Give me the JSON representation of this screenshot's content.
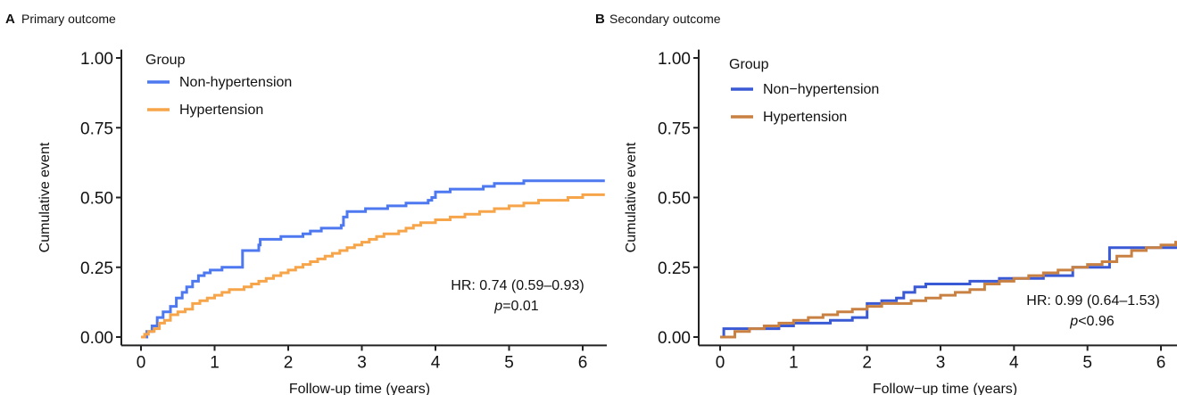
{
  "panels": [
    {
      "letter": "A",
      "title": "Primary outcome",
      "hr_text": "HR: 0.74 (0.59–0.93)",
      "p_symbol": "p",
      "p_rest": "=0.01"
    },
    {
      "letter": "B",
      "title": "Secondary outcome",
      "hr_text": "HR: 0.99 (0.64–1.53)",
      "p_symbol": "p",
      "p_rest": "<0.96"
    }
  ],
  "chart_data": [
    {
      "type": "line",
      "step": true,
      "title": "Primary outcome",
      "xlabel": "Follow-up time (years)",
      "ylabel": "Cumulative event",
      "xlim": [
        -0.15,
        6.3
      ],
      "ylim": [
        -0.03,
        1.03
      ],
      "xticks": [
        0,
        1,
        2,
        3,
        4,
        5,
        6
      ],
      "yticks": [
        0.0,
        0.25,
        0.5,
        0.75,
        1.0
      ],
      "ytick_labels": [
        "0.00",
        "0.25",
        "0.50",
        "0.75",
        "1.00"
      ],
      "legend_title": "Group",
      "legend_position": "top-left",
      "grid": false,
      "series": [
        {
          "name": "Non-hypertension",
          "color": "#4d78f0",
          "x": [
            0,
            0.08,
            0.15,
            0.22,
            0.3,
            0.4,
            0.48,
            0.56,
            0.62,
            0.7,
            0.78,
            0.86,
            0.94,
            1.02,
            1.1,
            1.2,
            1.35,
            1.38,
            1.5,
            1.6,
            1.62,
            1.75,
            1.9,
            2.05,
            2.2,
            2.3,
            2.45,
            2.6,
            2.72,
            2.75,
            2.8,
            2.9,
            3.05,
            3.2,
            3.35,
            3.45,
            3.6,
            3.75,
            3.9,
            3.95,
            4.0,
            4.1,
            4.2,
            4.35,
            4.5,
            4.65,
            4.8,
            5.0,
            5.2,
            5.5,
            6.3
          ],
          "y": [
            0.0,
            0.02,
            0.04,
            0.07,
            0.09,
            0.11,
            0.14,
            0.16,
            0.18,
            0.2,
            0.22,
            0.23,
            0.24,
            0.24,
            0.25,
            0.25,
            0.25,
            0.31,
            0.31,
            0.33,
            0.35,
            0.35,
            0.36,
            0.36,
            0.37,
            0.38,
            0.39,
            0.39,
            0.4,
            0.43,
            0.45,
            0.45,
            0.46,
            0.46,
            0.47,
            0.47,
            0.48,
            0.48,
            0.49,
            0.5,
            0.52,
            0.52,
            0.53,
            0.53,
            0.53,
            0.54,
            0.55,
            0.55,
            0.56,
            0.56,
            0.56
          ]
        },
        {
          "name": "Hypertension",
          "color": "#f7a54a",
          "x": [
            0,
            0.05,
            0.1,
            0.18,
            0.25,
            0.32,
            0.4,
            0.5,
            0.6,
            0.7,
            0.8,
            0.9,
            1.0,
            1.1,
            1.2,
            1.3,
            1.4,
            1.5,
            1.6,
            1.7,
            1.8,
            1.9,
            2.0,
            2.1,
            2.2,
            2.3,
            2.4,
            2.5,
            2.6,
            2.7,
            2.8,
            2.9,
            3.0,
            3.1,
            3.2,
            3.3,
            3.4,
            3.5,
            3.6,
            3.7,
            3.8,
            3.9,
            4.0,
            4.2,
            4.4,
            4.6,
            4.8,
            5.0,
            5.2,
            5.4,
            5.6,
            5.8,
            6.0,
            6.3
          ],
          "y": [
            0.0,
            0.01,
            0.02,
            0.03,
            0.05,
            0.06,
            0.08,
            0.09,
            0.1,
            0.12,
            0.13,
            0.14,
            0.15,
            0.16,
            0.17,
            0.17,
            0.18,
            0.19,
            0.2,
            0.21,
            0.22,
            0.23,
            0.24,
            0.25,
            0.26,
            0.27,
            0.28,
            0.29,
            0.3,
            0.31,
            0.32,
            0.33,
            0.34,
            0.35,
            0.36,
            0.37,
            0.37,
            0.38,
            0.39,
            0.4,
            0.41,
            0.41,
            0.42,
            0.43,
            0.44,
            0.45,
            0.46,
            0.47,
            0.48,
            0.49,
            0.49,
            0.5,
            0.51,
            0.51
          ]
        }
      ]
    },
    {
      "type": "line",
      "step": true,
      "title": "Secondary outcome",
      "xlabel": "Follow−up time (years)",
      "ylabel": "Cumulative event",
      "xlim": [
        -0.15,
        6.3
      ],
      "ylim": [
        -0.03,
        1.03
      ],
      "xticks": [
        0,
        1,
        2,
        3,
        4,
        5,
        6
      ],
      "yticks": [
        0.0,
        0.25,
        0.5,
        0.75,
        1.0
      ],
      "ytick_labels": [
        "0.00",
        "0.25",
        "0.50",
        "0.75",
        "1.00"
      ],
      "legend_title": "Group",
      "legend_position": "top-left",
      "grid": false,
      "series": [
        {
          "name": "Non−hypertension",
          "color": "#3a59d4",
          "x": [
            0,
            0.05,
            0.5,
            0.8,
            1.0,
            1.2,
            1.5,
            1.8,
            1.95,
            2.0,
            2.2,
            2.4,
            2.5,
            2.65,
            2.8,
            3.0,
            3.2,
            3.4,
            3.6,
            3.8,
            4.0,
            4.2,
            4.4,
            4.6,
            4.8,
            5.0,
            5.2,
            5.3,
            5.5,
            5.7,
            6.0,
            6.3
          ],
          "y": [
            0.0,
            0.03,
            0.03,
            0.04,
            0.05,
            0.05,
            0.06,
            0.07,
            0.07,
            0.12,
            0.13,
            0.14,
            0.16,
            0.18,
            0.19,
            0.19,
            0.19,
            0.2,
            0.2,
            0.21,
            0.21,
            0.21,
            0.22,
            0.22,
            0.25,
            0.25,
            0.25,
            0.32,
            0.32,
            0.32,
            0.32,
            0.32
          ]
        },
        {
          "name": "Hypertension",
          "color": "#c88142",
          "x": [
            0,
            0.2,
            0.4,
            0.6,
            0.8,
            1.0,
            1.2,
            1.4,
            1.6,
            1.8,
            2.0,
            2.2,
            2.4,
            2.6,
            2.8,
            3.0,
            3.2,
            3.4,
            3.6,
            3.8,
            4.0,
            4.2,
            4.4,
            4.6,
            4.8,
            5.0,
            5.2,
            5.4,
            5.6,
            5.8,
            6.0,
            6.2,
            6.3
          ],
          "y": [
            0.0,
            0.02,
            0.03,
            0.04,
            0.05,
            0.06,
            0.07,
            0.08,
            0.09,
            0.1,
            0.11,
            0.12,
            0.12,
            0.13,
            0.14,
            0.15,
            0.16,
            0.17,
            0.19,
            0.2,
            0.21,
            0.22,
            0.23,
            0.24,
            0.25,
            0.26,
            0.27,
            0.29,
            0.31,
            0.32,
            0.33,
            0.34,
            0.35
          ]
        }
      ]
    }
  ]
}
